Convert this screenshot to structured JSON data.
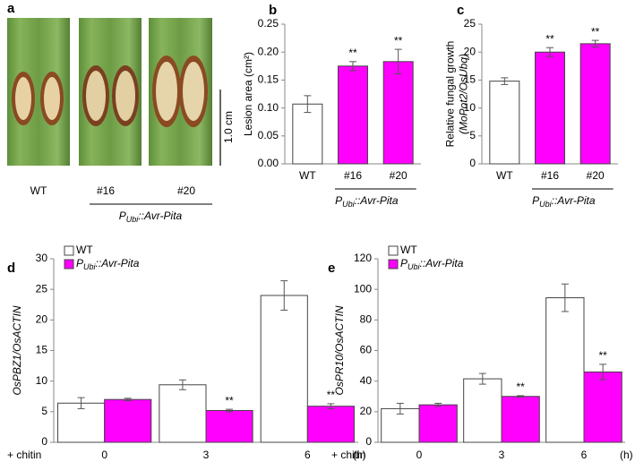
{
  "photo_panel": {
    "letter": "a",
    "labels": [
      "WT",
      "#16",
      "#20"
    ],
    "group_label": "PUbi::Avr-Pita",
    "scale_bar": "1.0 cm"
  },
  "chart_data": [
    {
      "type": "bar",
      "panel": "b",
      "categories": [
        "WT",
        "#16",
        "#20"
      ],
      "values": [
        0.107,
        0.175,
        0.183
      ],
      "errors": [
        0.015,
        0.008,
        0.022
      ],
      "colors": [
        "#ffffff",
        "#ff00ff",
        "#ff00ff"
      ],
      "annotations": [
        null,
        "**",
        "**"
      ],
      "ylabel": [
        "Lesion area (cm²)"
      ],
      "ylabel_italic": [
        false
      ],
      "group_label": "PUbi::Avr-Pita",
      "ylim": [
        0,
        0.25
      ],
      "yticks": [
        {
          "value": 0,
          "label": "0.00"
        },
        {
          "value": 0.05,
          "label": "0.05"
        },
        {
          "value": 0.1,
          "label": "0.10"
        },
        {
          "value": 0.15,
          "label": "0.15"
        },
        {
          "value": 0.2,
          "label": "0.20"
        },
        {
          "value": 0.25,
          "label": "0.25"
        }
      ]
    },
    {
      "type": "bar",
      "panel": "c",
      "categories": [
        "WT",
        "#16",
        "#20"
      ],
      "values": [
        14.8,
        20.0,
        21.5
      ],
      "errors": [
        0.6,
        0.8,
        0.6
      ],
      "colors": [
        "#ffffff",
        "#ff00ff",
        "#ff00ff"
      ],
      "annotations": [
        null,
        "**",
        "**"
      ],
      "ylabel": [
        "Relative fungal growth",
        "(MoPot2/OsUbq)"
      ],
      "ylabel_italic": [
        false,
        true
      ],
      "group_label": "PUbi::Avr-Pita",
      "ylim": [
        0,
        25
      ],
      "yticks": [
        0,
        5,
        10,
        15,
        20,
        25
      ]
    },
    {
      "type": "grouped_bar",
      "panel": "d",
      "categories": [
        "0",
        "3",
        "6"
      ],
      "xlabel": "+ chitin",
      "xunit": "(h)",
      "ylabel": [
        "OsPBZ1/OsACTIN"
      ],
      "ylabel_italic": [
        true
      ],
      "series": [
        {
          "name": "WT",
          "color": "#ffffff",
          "values": [
            6.4,
            9.4,
            24.0
          ],
          "errors": [
            0.9,
            0.8,
            2.4
          ]
        },
        {
          "name": "PUbi::Avr-Pita",
          "color": "#ff00ff",
          "values": [
            7.0,
            5.2,
            5.9
          ],
          "errors": [
            0.2,
            0.2,
            0.4
          ],
          "annotations": [
            null,
            "**",
            "**"
          ]
        }
      ],
      "ylim": [
        0,
        30
      ],
      "yticks": [
        0,
        5,
        10,
        15,
        20,
        25,
        30
      ]
    },
    {
      "type": "grouped_bar",
      "panel": "e",
      "categories": [
        "0",
        "3",
        "6"
      ],
      "xlabel": "+ chitin",
      "xunit": "(h)",
      "ylabel": [
        "OsPR10/OsACTIN"
      ],
      "ylabel_italic": [
        true
      ],
      "series": [
        {
          "name": "WT",
          "color": "#ffffff",
          "values": [
            22,
            41.5,
            94.5
          ],
          "errors": [
            3.5,
            3.5,
            9
          ]
        },
        {
          "name": "PUbi::Avr-Pita",
          "color": "#ff00ff",
          "values": [
            24.5,
            30,
            46
          ],
          "errors": [
            1,
            0.5,
            5
          ],
          "annotations": [
            null,
            "**",
            "**"
          ]
        }
      ],
      "ylim": [
        0,
        120
      ],
      "yticks": [
        0,
        20,
        40,
        60,
        80,
        100,
        120
      ]
    }
  ]
}
